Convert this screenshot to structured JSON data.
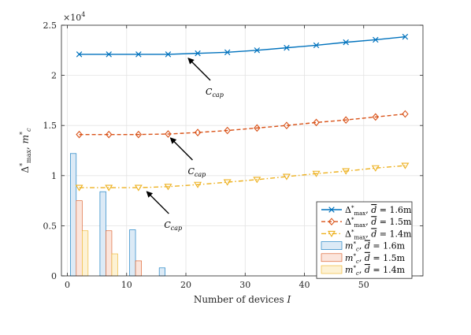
{
  "chart_data": {
    "type": "line",
    "title": "",
    "xlabel": "Number of devices I",
    "ylabel": "Δ*max, m*c",
    "y_multiplier_label": "×10^4",
    "xlim": [
      -1,
      60
    ],
    "ylim": [
      0,
      2.5
    ],
    "xticks": [
      "0",
      "10",
      "20",
      "30",
      "40",
      "50"
    ],
    "yticks": [
      "0",
      "0.5",
      "1",
      "1.5",
      "2",
      "2.5"
    ],
    "grid": true,
    "legend_position": "bottom-right",
    "line_series": [
      {
        "name": "Δ*max, d̄=1.6m",
        "color": "#0072BD",
        "marker": "x",
        "style": "solid",
        "x": [
          2,
          7,
          12,
          17,
          22,
          27,
          32,
          37,
          42,
          47,
          52,
          57
        ],
        "y": [
          2.21,
          2.21,
          2.21,
          2.21,
          2.22,
          2.23,
          2.25,
          2.275,
          2.3,
          2.33,
          2.355,
          2.385
        ]
      },
      {
        "name": "Δ*max, d̄=1.5m",
        "color": "#D95319",
        "marker": "diamond",
        "style": "dashed",
        "x": [
          2,
          7,
          12,
          17,
          22,
          27,
          32,
          37,
          42,
          47,
          52,
          57
        ],
        "y": [
          1.41,
          1.41,
          1.41,
          1.415,
          1.43,
          1.45,
          1.475,
          1.5,
          1.53,
          1.555,
          1.585,
          1.615
        ]
      },
      {
        "name": "Δ*max, d̄=1.4m",
        "color": "#EDB120",
        "marker": "triangle-down",
        "style": "dashdot",
        "x": [
          2,
          7,
          12,
          17,
          22,
          27,
          32,
          37,
          42,
          47,
          52,
          57
        ],
        "y": [
          0.88,
          0.88,
          0.88,
          0.89,
          0.91,
          0.935,
          0.96,
          0.99,
          1.02,
          1.045,
          1.075,
          1.1
        ]
      }
    ],
    "bar_series": [
      {
        "name": "m*c, d̄=1.6m",
        "fill": "#DCEAF6",
        "stroke": "#0072BD",
        "x": [
          1,
          6,
          11,
          16
        ],
        "y": [
          1.22,
          0.84,
          0.46,
          0.08
        ]
      },
      {
        "name": "m*c, d̄=1.5m",
        "fill": "#FBE5DC",
        "stroke": "#D95319",
        "x": [
          2,
          7,
          12
        ],
        "y": [
          0.75,
          0.45,
          0.15
        ]
      },
      {
        "name": "m*c, d̄=1.4m",
        "fill": "#FDF2D4",
        "stroke": "#EDB120",
        "x": [
          3,
          8
        ],
        "y": [
          0.45,
          0.22
        ]
      }
    ],
    "annotations": [
      {
        "text": "Ccap",
        "main": "C",
        "sub": "cap",
        "point": [
          20,
          2.21
        ]
      },
      {
        "text": "Ccap",
        "main": "C",
        "sub": "cap",
        "point": [
          17,
          1.415
        ]
      },
      {
        "text": "Ccap",
        "main": "C",
        "sub": "cap",
        "point": [
          13,
          0.88
        ]
      }
    ]
  }
}
